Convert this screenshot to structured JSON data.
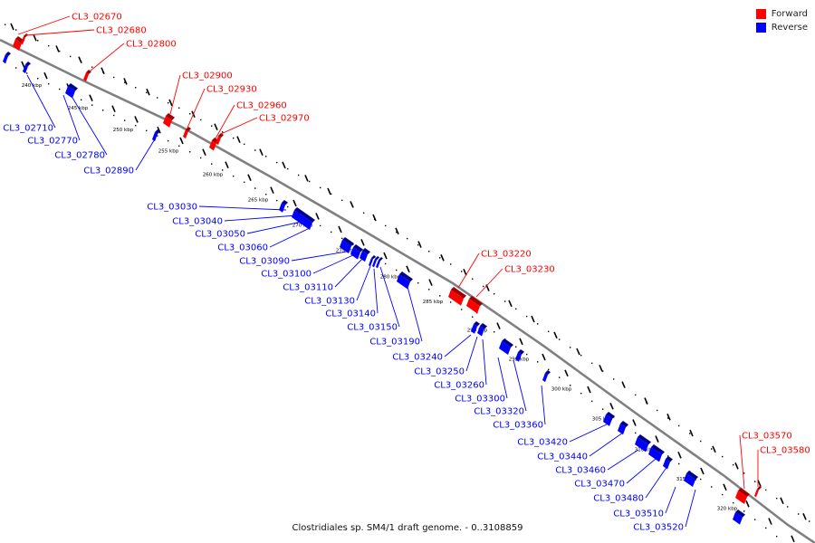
{
  "caption": "Clostridiales sp. SM4/1 draft genome. - 0..3108859",
  "legend": [
    {
      "label": "Forward",
      "color": "#ff0000"
    },
    {
      "label": "Reverse",
      "color": "#0000ff"
    }
  ],
  "colors": {
    "forward": "#ff0000",
    "reverse": "#0000ff",
    "backbone": "#808080",
    "ticks": "#000000"
  },
  "scale": {
    "unit": "kbp",
    "labels": [
      "240 kbp",
      "245 kbp",
      "250 kbp",
      "255 kbp",
      "260 kbp",
      "265 kbp",
      "270 kbp",
      "275 kbp",
      "280 kbp",
      "285 kbp",
      "290 kbp",
      "295 kbp",
      "300 kbp",
      "305 kbp",
      "310 kbp",
      "315 kbp",
      "320 kbp"
    ]
  },
  "genes": {
    "forward": [
      "CL3_02670",
      "CL3_02680",
      "CL3_02800",
      "CL3_02900",
      "CL3_02930",
      "CL3_02960",
      "CL3_02970",
      "CL3_03220",
      "CL3_03230",
      "CL3_03570",
      "CL3_03580"
    ],
    "reverse": [
      "CL3_02710",
      "CL3_02770",
      "CL3_02780",
      "CL3_02890",
      "CL3_03030",
      "CL3_03040",
      "CL3_03050",
      "CL3_03060",
      "CL3_03090",
      "CL3_03100",
      "CL3_03110",
      "CL3_03130",
      "CL3_03140",
      "CL3_03150",
      "CL3_03190",
      "CL3_03240",
      "CL3_03250",
      "CL3_03260",
      "CL3_03300",
      "CL3_03320",
      "CL3_03360",
      "CL3_03420",
      "CL3_03440",
      "CL3_03460",
      "CL3_03470",
      "CL3_03480",
      "CL3_03510",
      "CL3_03520"
    ]
  }
}
